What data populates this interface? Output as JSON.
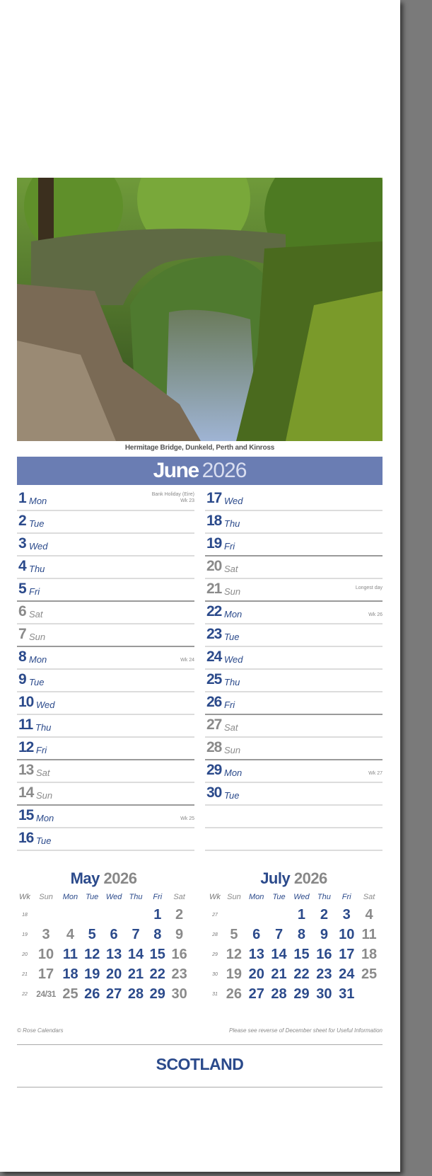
{
  "photo": {
    "caption": "Hermitage Bridge, Dunkeld, Perth and Kinross"
  },
  "month": {
    "name": "June",
    "year": "2026"
  },
  "days": [
    {
      "num": "1",
      "day": "Mon",
      "note": "Bank Holiday (Eire)",
      "wk": "Wk 23"
    },
    {
      "num": "2",
      "day": "Tue"
    },
    {
      "num": "3",
      "day": "Wed"
    },
    {
      "num": "4",
      "day": "Thu"
    },
    {
      "num": "5",
      "day": "Fri"
    },
    {
      "num": "6",
      "day": "Sat",
      "weekend": true
    },
    {
      "num": "7",
      "day": "Sun",
      "weekend": true
    },
    {
      "num": "8",
      "day": "Mon",
      "wk": "Wk 24"
    },
    {
      "num": "9",
      "day": "Tue"
    },
    {
      "num": "10",
      "day": "Wed"
    },
    {
      "num": "11",
      "day": "Thu"
    },
    {
      "num": "12",
      "day": "Fri"
    },
    {
      "num": "13",
      "day": "Sat",
      "weekend": true
    },
    {
      "num": "14",
      "day": "Sun",
      "weekend": true
    },
    {
      "num": "15",
      "day": "Mon",
      "wk": "Wk 25"
    },
    {
      "num": "16",
      "day": "Tue"
    },
    {
      "num": "17",
      "day": "Wed"
    },
    {
      "num": "18",
      "day": "Thu"
    },
    {
      "num": "19",
      "day": "Fri"
    },
    {
      "num": "20",
      "day": "Sat",
      "weekend": true
    },
    {
      "num": "21",
      "day": "Sun",
      "weekend": true,
      "note": "Longest day"
    },
    {
      "num": "22",
      "day": "Mon",
      "wk": "Wk 26"
    },
    {
      "num": "23",
      "day": "Tue"
    },
    {
      "num": "24",
      "day": "Wed"
    },
    {
      "num": "25",
      "day": "Thu"
    },
    {
      "num": "26",
      "day": "Fri"
    },
    {
      "num": "27",
      "day": "Sat",
      "weekend": true
    },
    {
      "num": "28",
      "day": "Sun",
      "weekend": true
    },
    {
      "num": "29",
      "day": "Mon",
      "wk": "Wk 27"
    },
    {
      "num": "30",
      "day": "Tue"
    }
  ],
  "mini_calendars": [
    {
      "month": "May",
      "year": "2026",
      "headers": [
        "Wk",
        "Sun",
        "Mon",
        "Tue",
        "Wed",
        "Thu",
        "Fri",
        "Sat"
      ],
      "weeks": [
        {
          "wk": "18",
          "days": [
            "",
            "",
            "",
            "",
            "",
            "1",
            "2"
          ]
        },
        {
          "wk": "19",
          "days": [
            "3",
            "4",
            "5",
            "6",
            "7",
            "8",
            "9"
          ]
        },
        {
          "wk": "20",
          "days": [
            "10",
            "11",
            "12",
            "13",
            "14",
            "15",
            "16"
          ]
        },
        {
          "wk": "21",
          "days": [
            "17",
            "18",
            "19",
            "20",
            "21",
            "22",
            "23"
          ]
        },
        {
          "wk": "22",
          "days": [
            "24/31",
            "25",
            "26",
            "27",
            "28",
            "29",
            "30"
          ]
        }
      ],
      "muted": [
        "4",
        "25"
      ]
    },
    {
      "month": "July",
      "year": "2026",
      "headers": [
        "Wk",
        "Sun",
        "Mon",
        "Tue",
        "Wed",
        "Thu",
        "Fri",
        "Sat"
      ],
      "weeks": [
        {
          "wk": "27",
          "days": [
            "",
            "",
            "",
            "1",
            "2",
            "3",
            "4"
          ]
        },
        {
          "wk": "28",
          "days": [
            "5",
            "6",
            "7",
            "8",
            "9",
            "10",
            "11"
          ]
        },
        {
          "wk": "29",
          "days": [
            "12",
            "13",
            "14",
            "15",
            "16",
            "17",
            "18"
          ]
        },
        {
          "wk": "30",
          "days": [
            "19",
            "20",
            "21",
            "22",
            "23",
            "24",
            "25"
          ]
        },
        {
          "wk": "31",
          "days": [
            "26",
            "27",
            "28",
            "29",
            "30",
            "31",
            ""
          ]
        }
      ],
      "muted": []
    }
  ],
  "footer": {
    "copyright": "© Rose Calendars",
    "info": "Please see reverse of December sheet for Useful Information",
    "brand": "SCOTLAND"
  },
  "colors": {
    "accent": "#2b4a8b",
    "banner": "#6a7db3",
    "muted": "#8a8a8a"
  }
}
